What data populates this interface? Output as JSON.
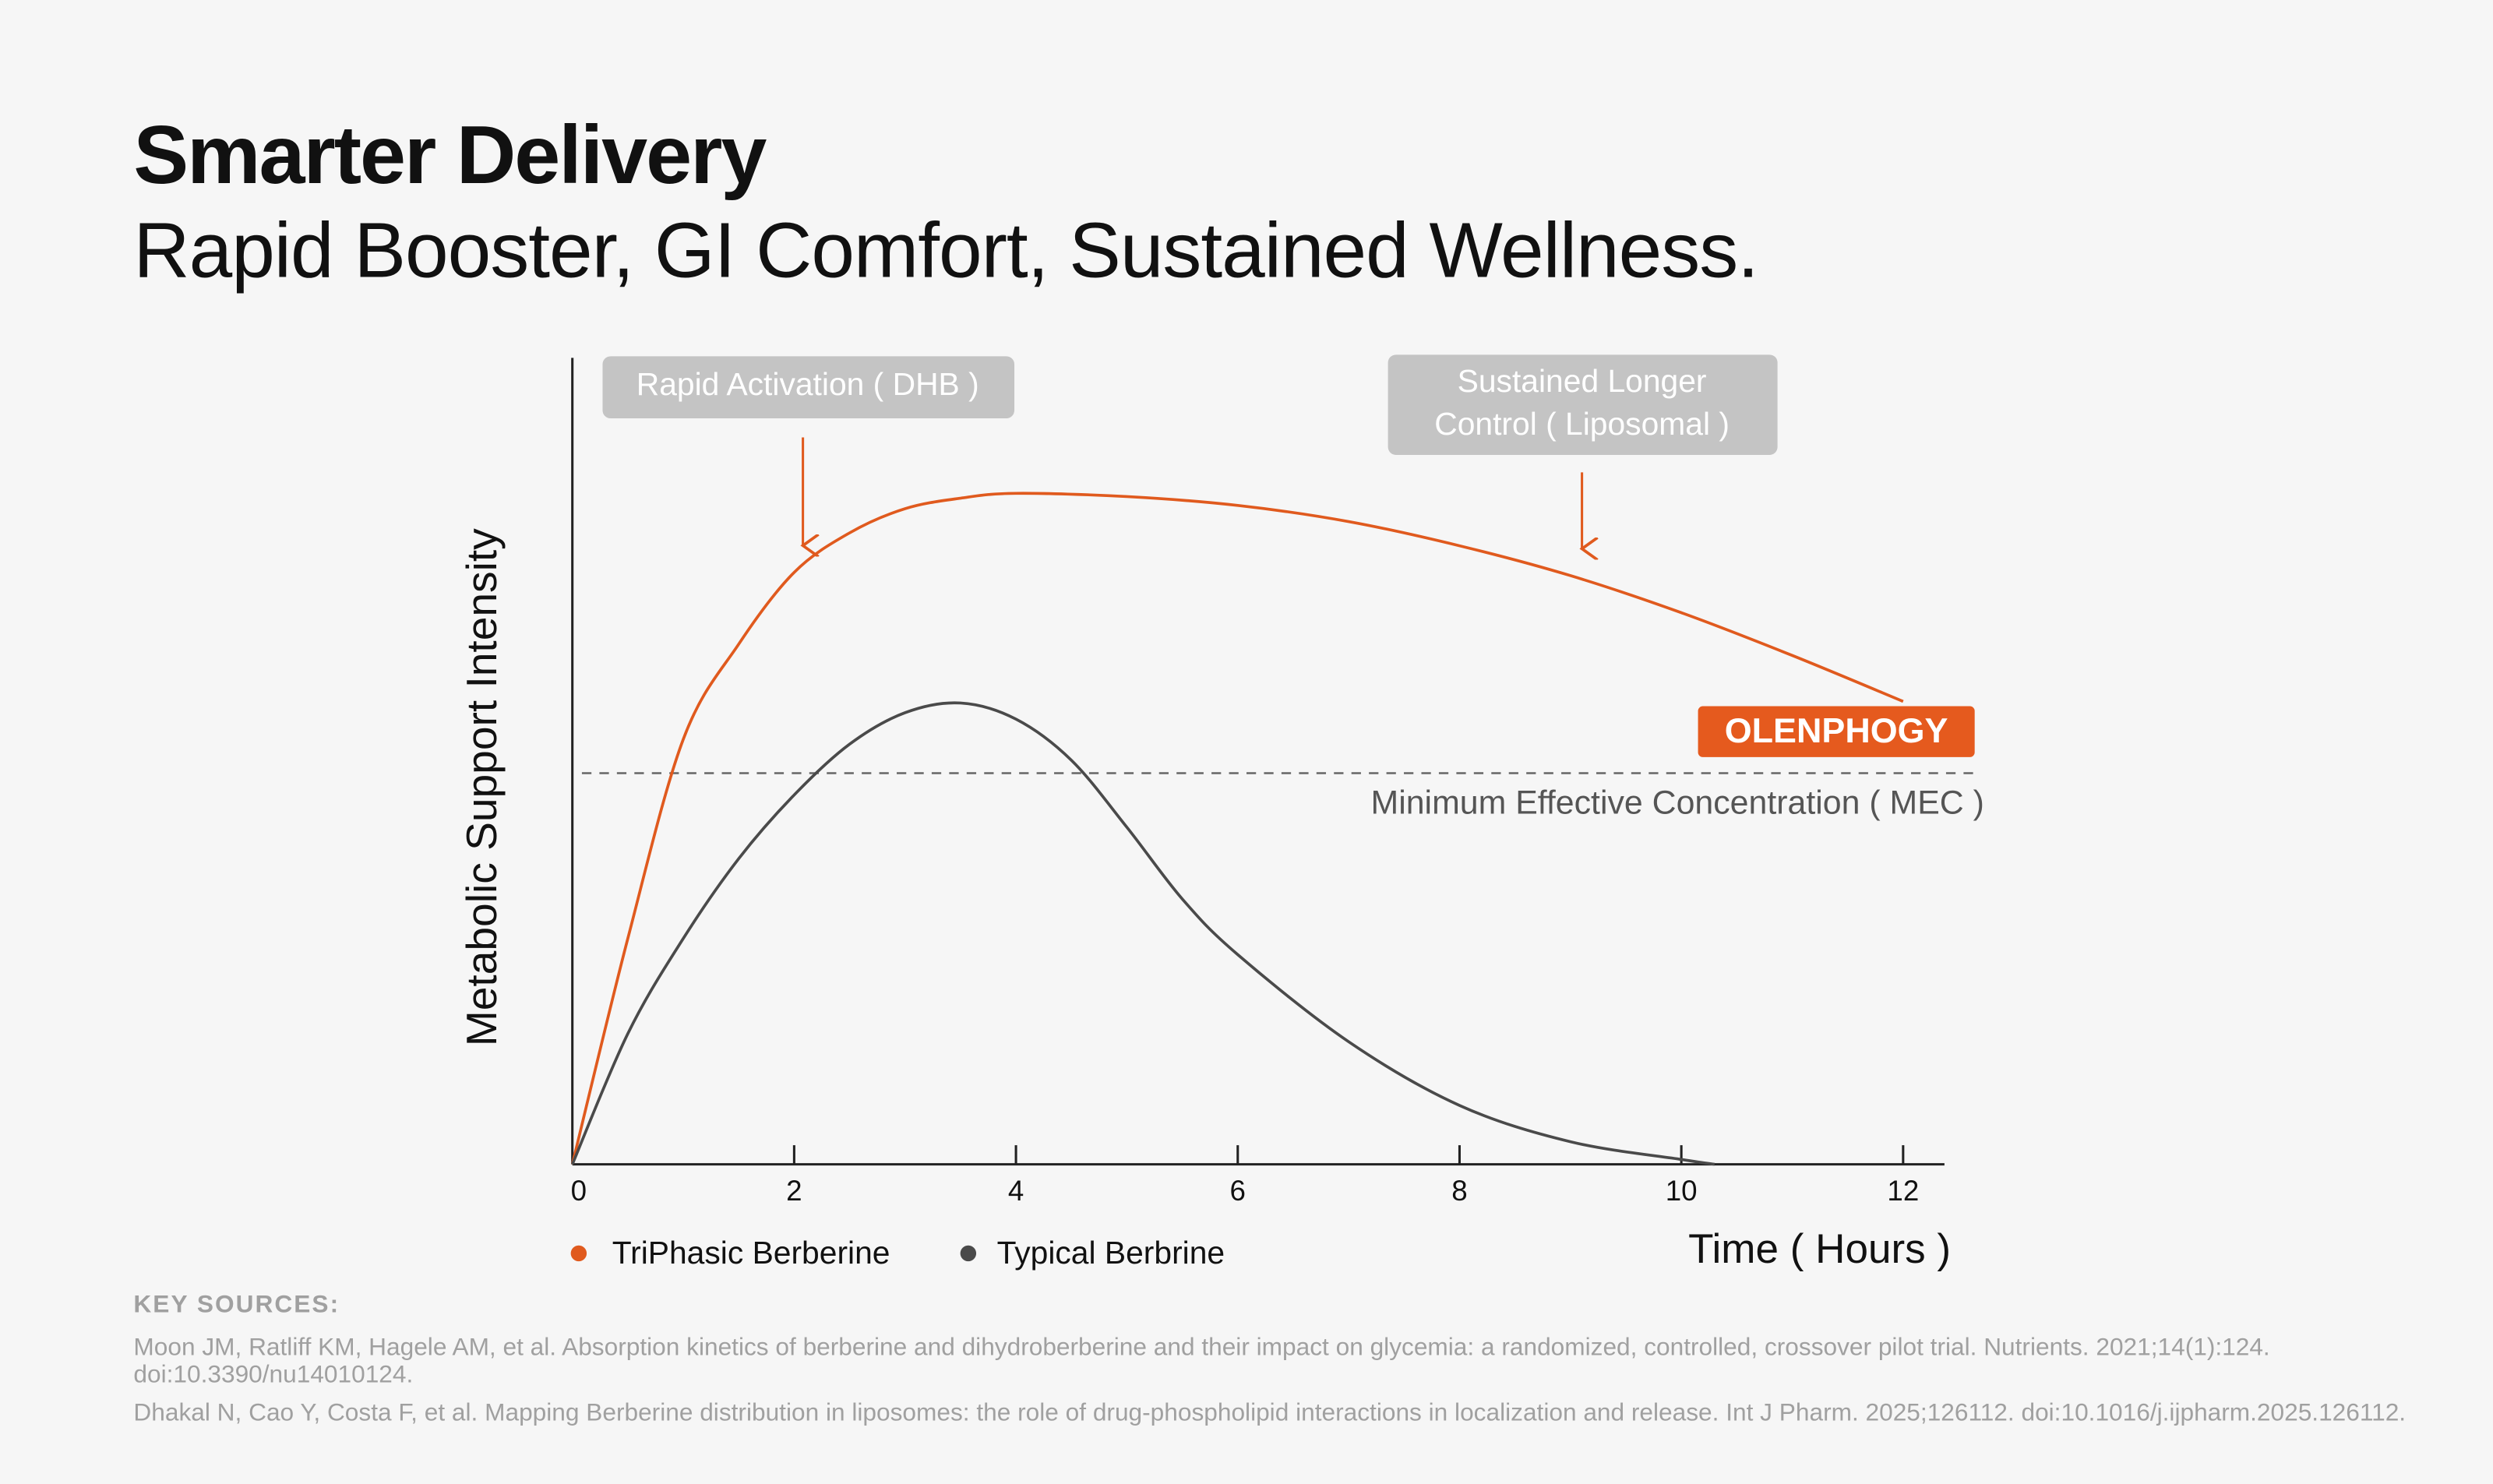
{
  "title": "Smarter Delivery",
  "subtitle": "Rapid Booster, GI Comfort, Sustained Wellness.",
  "chart_data": {
    "type": "line",
    "y_label": "Metabolic Support Intensity",
    "x_label": "Time ( Hours )",
    "xlim": [
      0,
      12
    ],
    "xticks": [
      0,
      2,
      4,
      6,
      8,
      10,
      12
    ],
    "ylim": [
      0,
      100
    ],
    "series": [
      {
        "name": "TriPhasic Berberine",
        "color": "#e05a1e",
        "x": [
          0,
          0.5,
          1,
          1.5,
          2,
          2.5,
          3,
          3.5,
          4,
          5,
          6,
          7,
          8,
          9,
          10,
          11,
          12
        ],
        "values": [
          0,
          28,
          52.7,
          64.5,
          73.4,
          78.3,
          81.3,
          82.6,
          83.2,
          82.8,
          81.7,
          79.7,
          76.7,
          73,
          68.4,
          63.1,
          57.4
        ]
      },
      {
        "name": "Typical Berbrine",
        "color": "#4a4a4a",
        "x": [
          0,
          0.5,
          1,
          1.5,
          2,
          2.5,
          3,
          3.5,
          4,
          4.5,
          5,
          5.5,
          6,
          7,
          8,
          9,
          10,
          10.3
        ],
        "values": [
          0,
          16.2,
          28,
          37.9,
          45.8,
          52.1,
          56,
          57.2,
          55.2,
          50.1,
          41.8,
          32.9,
          26,
          15.2,
          7.3,
          2.8,
          0.6,
          0
        ]
      }
    ],
    "mec": {
      "label": "Minimum Effective Concentration ( MEC )",
      "value": 48.5
    },
    "annotations": {
      "rapid": "Rapid Activation ( DHB )",
      "sustained": [
        "Sustained Longer",
        "Control ( Liposomal )"
      ],
      "brand": "OLENPHOGY"
    }
  },
  "sources": {
    "heading": "KEY SOURCES:",
    "items": [
      "Moon JM, Ratliff KM, Hagele AM, et al. Absorption kinetics of berberine and dihydroberberine and their impact on glycemia: a randomized, controlled, crossover pilot trial. Nutrients. 2021;14(1):124. doi:10.3390/nu14010124.",
      "Dhakal N, Cao Y, Costa F, et al. Mapping Berberine distribution in liposomes: the role of drug-phospholipid interactions in localization and release. Int J Pharm. 2025;126112. doi:10.1016/j.ijpharm.2025.126112."
    ]
  }
}
